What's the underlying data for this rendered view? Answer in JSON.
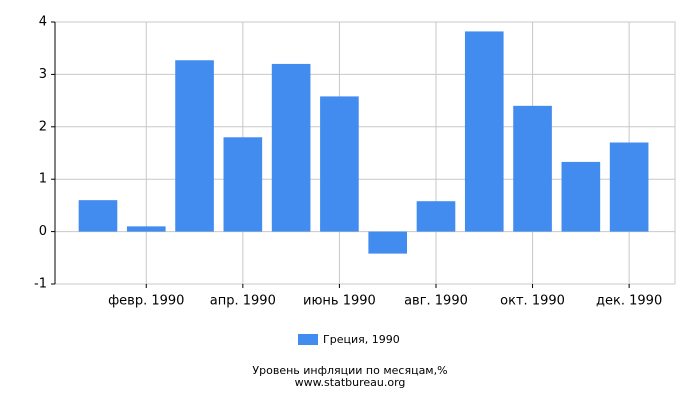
{
  "chart_data": {
    "type": "bar",
    "title": "Уровень инфляции по месяцам,%",
    "source": "www.statbureau.org",
    "categories": [
      null,
      "февр. 1990",
      null,
      "апр. 1990",
      null,
      "июнь 1990",
      null,
      "авг. 1990",
      null,
      "окт. 1990",
      null,
      "дек. 1990"
    ],
    "series": [
      {
        "name": "Греция, 1990",
        "color": "#428bef",
        "values": [
          0.6,
          0.1,
          3.27,
          1.8,
          3.2,
          2.58,
          -0.42,
          0.58,
          3.82,
          2.4,
          1.33,
          1.7
        ]
      }
    ],
    "ylim": [
      -1,
      4
    ],
    "yticks": [
      -1,
      0,
      1,
      2,
      3,
      4
    ],
    "grid": true,
    "legend": "bottom"
  }
}
